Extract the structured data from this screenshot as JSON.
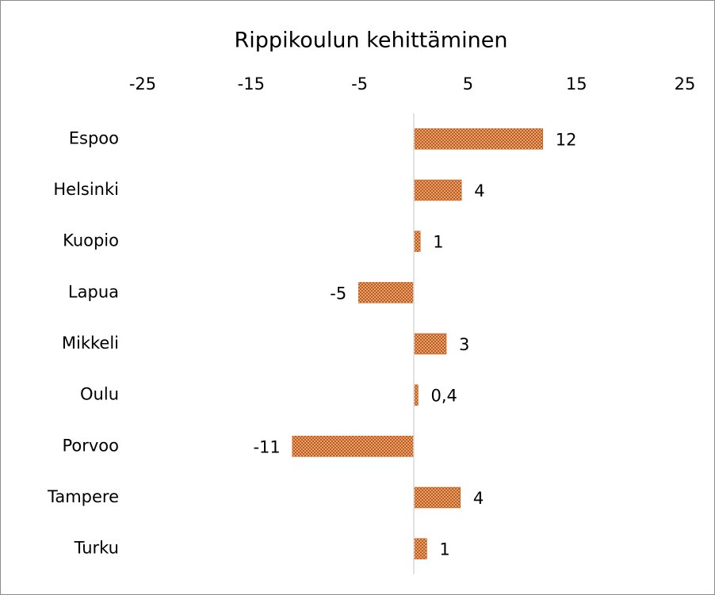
{
  "chart_data": {
    "type": "barh",
    "title": "Rippikoulun kehittäminen",
    "categories": [
      "Espoo",
      "Helsinki",
      "Kuopio",
      "Lapua",
      "Mikkeli",
      "Oulu",
      "Porvoo",
      "Tampere",
      "Turku"
    ],
    "values": [
      11.9,
      4.4,
      0.6,
      -5.1,
      3,
      0.4,
      -11.2,
      4.3,
      1.2
    ],
    "value_labels": [
      "12",
      "4",
      "1",
      "-5",
      "3",
      "0,4",
      "-11",
      "4",
      "1"
    ],
    "color": "#c55a11",
    "xlim": [
      -25,
      25
    ],
    "xticks": [
      -25,
      -15,
      -5,
      5,
      15,
      25
    ],
    "grid": false
  }
}
